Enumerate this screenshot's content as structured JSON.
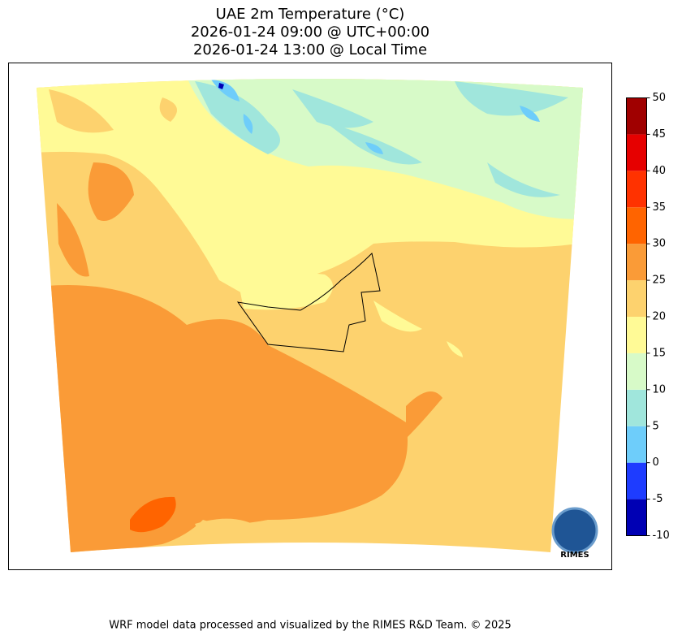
{
  "title": [
    "UAE 2m Temperature (°C)",
    "2026-01-24 09:00 @ UTC+00:00",
    "2026-01-24 13:00 @ Local Time"
  ],
  "colorbar": {
    "lim": [
      -10,
      50
    ],
    "ticks": [
      -10,
      -5,
      0,
      5,
      10,
      15,
      20,
      25,
      30,
      35,
      40,
      45,
      50
    ],
    "colors": [
      "#0000b4",
      "#1e3cff",
      "#6ecdfa",
      "#a0e6dc",
      "#d7fac8",
      "#fffa96",
      "#fdd26e",
      "#fa9b37",
      "#ff6400",
      "#ff3200",
      "#e60000",
      "#a00000"
    ]
  },
  "logo": "RIMES",
  "footer": "WRF model data processed and visualized by the RIMES R&D Team. © 2025"
}
